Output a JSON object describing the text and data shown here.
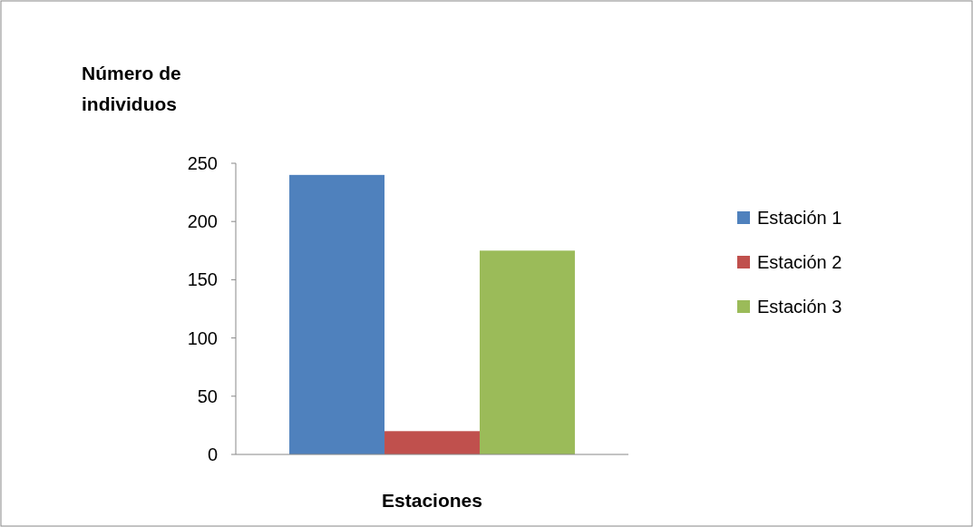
{
  "chart_data": {
    "type": "bar",
    "xlabel": "Estaciones",
    "ylabel": "Número de individuos",
    "categories": [
      null
    ],
    "series": [
      {
        "name": "Estación 1",
        "color": "#4f81bd",
        "values": [
          240
        ]
      },
      {
        "name": "Estación 2",
        "color": "#c0504d",
        "values": [
          20
        ]
      },
      {
        "name": "Estación 3",
        "color": "#9bbb59",
        "values": [
          175
        ]
      }
    ],
    "ylim": [
      0,
      250
    ],
    "yticks": [
      0,
      50,
      100,
      150,
      200,
      250
    ],
    "legend": "right"
  }
}
